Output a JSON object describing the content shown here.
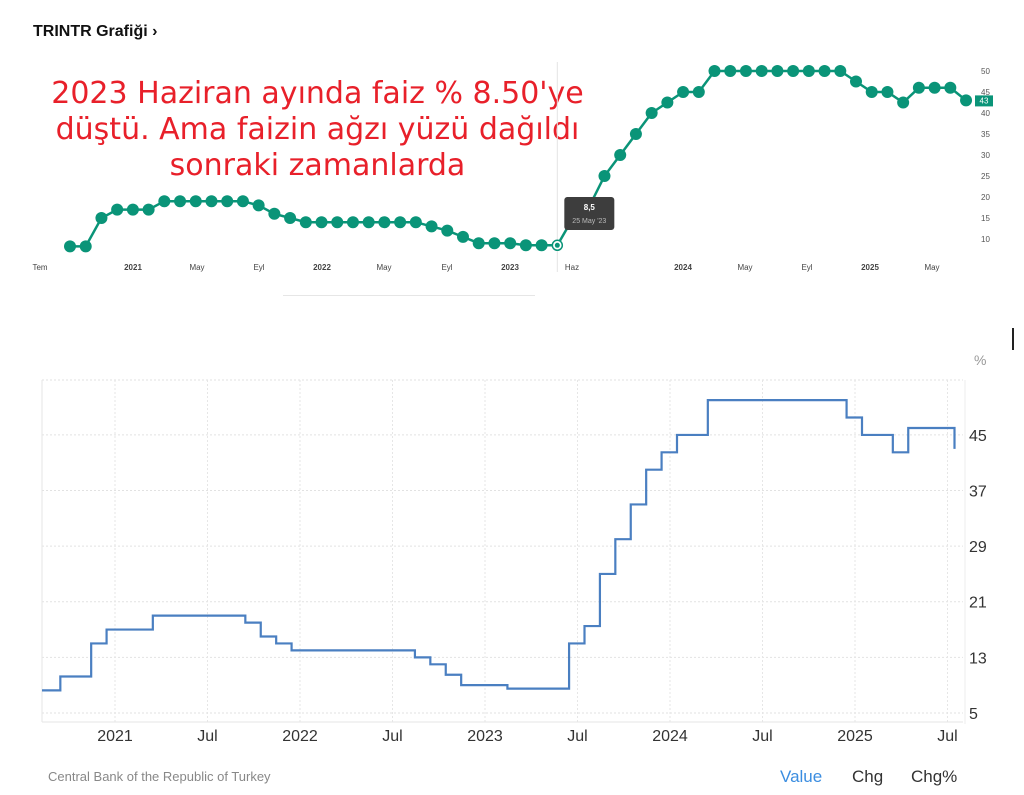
{
  "header": {
    "title": "TRINTR Grafiği ›"
  },
  "annotation": {
    "lines": [
      "2023 Haziran ayında faiz % 8.50'ye",
      "düştü. Ama faizin ağzı yüzü dağıldı",
      "sonraki zamanlarda"
    ]
  },
  "footer": {
    "source": "Central Bank of the Republic of Turkey",
    "tabs": [
      "Value",
      "Chg",
      "Chg%"
    ],
    "active_tab": "Value"
  },
  "colors": {
    "top_series": "#0a9478",
    "bottom_series": "#4a7fc1",
    "annotation": "#e8202a",
    "active_tab": "#3b8de0"
  },
  "chart_data": [
    {
      "type": "line",
      "title": "",
      "values": [
        8.25,
        8.25,
        15,
        17,
        17,
        17,
        19,
        19,
        19,
        19,
        19,
        19,
        18,
        16,
        15,
        14,
        14,
        14,
        14,
        14,
        14,
        14,
        14,
        13,
        12,
        10.5,
        9,
        9,
        9,
        8.5,
        8.5,
        8.5,
        15,
        17.5,
        25,
        30,
        35,
        40,
        42.5,
        45,
        45,
        50,
        50,
        50,
        50,
        50,
        50,
        50,
        50,
        50,
        47.5,
        45,
        45,
        42.5,
        46,
        46,
        46,
        43
      ],
      "x_tick_labels": [
        "Tem",
        "2021",
        "May",
        "Eyl",
        "2022",
        "May",
        "Eyl",
        "2023",
        "Haz",
        "2024",
        "May",
        "Eyl",
        "2025",
        "May"
      ],
      "x_tick_bold": [
        false,
        true,
        false,
        false,
        true,
        false,
        false,
        true,
        false,
        true,
        false,
        false,
        true,
        false
      ],
      "y_ticks": [
        10,
        15,
        20,
        25,
        30,
        35,
        40,
        45,
        50
      ],
      "ylim": [
        8,
        52
      ],
      "last_value_badge": "43",
      "tooltip": {
        "value": "8,5",
        "date": "25 May '23",
        "point_index": 31
      },
      "marker": "circle",
      "grid": false
    },
    {
      "type": "line",
      "step": true,
      "title": "",
      "unit": "%",
      "points": [
        {
          "date": "2020-08",
          "value": 8.25
        },
        {
          "date": "2020-09",
          "value": 10.25
        },
        {
          "date": "2020-11",
          "value": 15
        },
        {
          "date": "2020-12",
          "value": 17
        },
        {
          "date": "2021-03",
          "value": 19
        },
        {
          "date": "2021-09",
          "value": 18
        },
        {
          "date": "2021-10",
          "value": 16
        },
        {
          "date": "2021-11",
          "value": 15
        },
        {
          "date": "2021-12",
          "value": 14
        },
        {
          "date": "2022-08",
          "value": 13
        },
        {
          "date": "2022-09",
          "value": 12
        },
        {
          "date": "2022-10",
          "value": 10.5
        },
        {
          "date": "2022-11",
          "value": 9
        },
        {
          "date": "2023-02",
          "value": 8.5
        },
        {
          "date": "2023-06",
          "value": 15
        },
        {
          "date": "2023-07",
          "value": 17.5
        },
        {
          "date": "2023-08",
          "value": 25
        },
        {
          "date": "2023-09",
          "value": 30
        },
        {
          "date": "2023-10",
          "value": 35
        },
        {
          "date": "2023-11",
          "value": 40
        },
        {
          "date": "2023-12",
          "value": 42.5
        },
        {
          "date": "2024-01",
          "value": 45
        },
        {
          "date": "2024-03",
          "value": 50
        },
        {
          "date": "2024-12",
          "value": 47.5
        },
        {
          "date": "2025-01",
          "value": 45
        },
        {
          "date": "2025-03",
          "value": 42.5
        },
        {
          "date": "2025-04",
          "value": 46
        },
        {
          "date": "2025-07",
          "value": 43
        }
      ],
      "x_ticks": [
        {
          "label": "2021",
          "date": "2021-01"
        },
        {
          "label": "Jul",
          "date": "2021-07"
        },
        {
          "label": "2022",
          "date": "2022-01"
        },
        {
          "label": "Jul",
          "date": "2022-07"
        },
        {
          "label": "2023",
          "date": "2023-01"
        },
        {
          "label": "Jul",
          "date": "2023-07"
        },
        {
          "label": "2024",
          "date": "2024-01"
        },
        {
          "label": "Jul",
          "date": "2024-07"
        },
        {
          "label": "2025",
          "date": "2025-01"
        },
        {
          "label": "Jul",
          "date": "2025-07"
        }
      ],
      "y_ticks": [
        5,
        13,
        21,
        29,
        37,
        45
      ],
      "ylim": [
        3.7,
        52.9
      ],
      "grid": true
    }
  ]
}
